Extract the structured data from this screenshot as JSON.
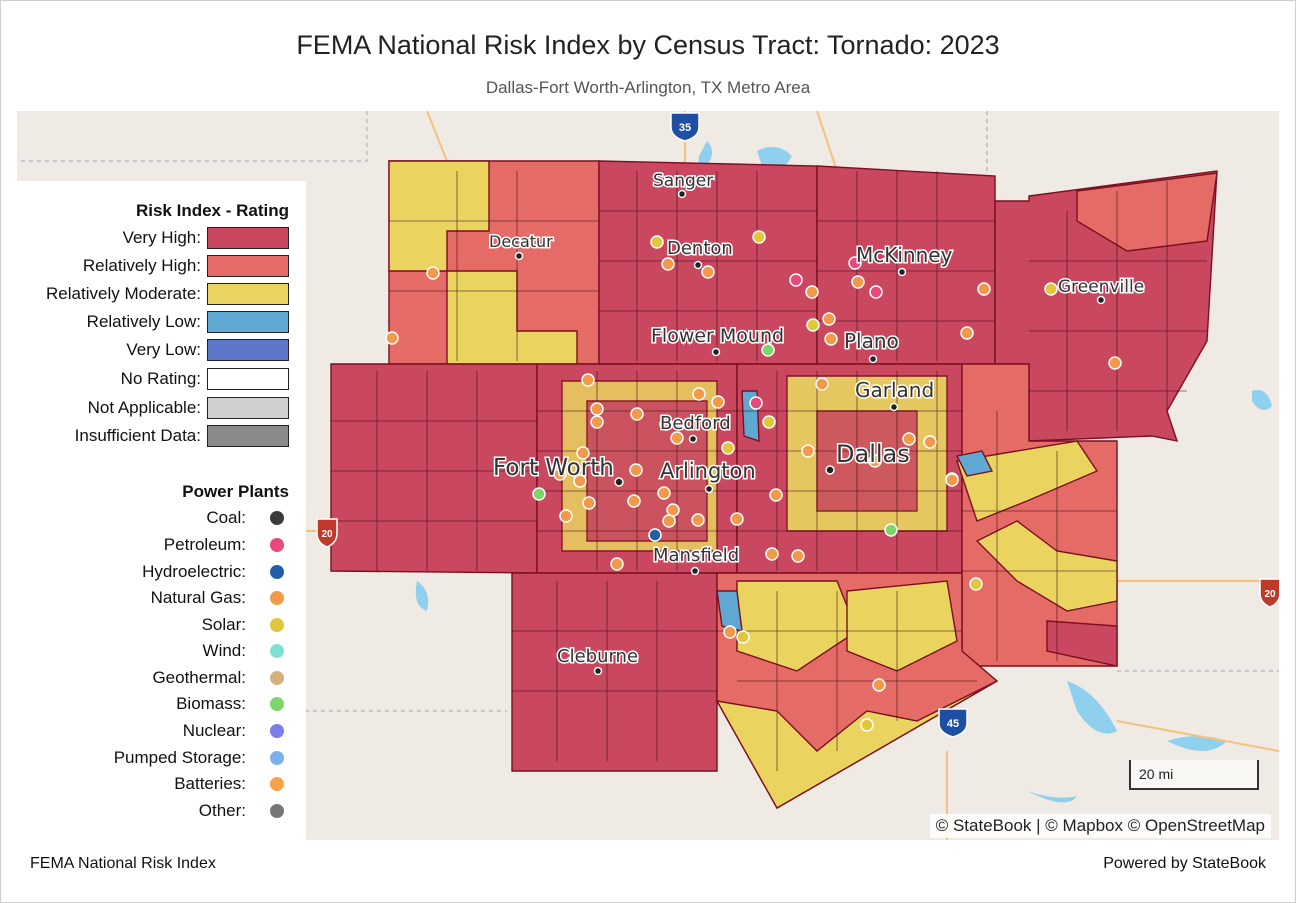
{
  "title": "FEMA National Risk Index by Census Tract: Tornado: 2023",
  "subtitle": "Dallas-Fort Worth-Arlington, TX Metro Area",
  "legend": {
    "risk_heading": "Risk Index - Rating",
    "risk_items": [
      {
        "label": "Very High:",
        "color": "#c9475f"
      },
      {
        "label": "Relatively High:",
        "color": "#e56b66"
      },
      {
        "label": "Relatively Moderate:",
        "color": "#ead45f"
      },
      {
        "label": "Relatively Low:",
        "color": "#5ea8d2"
      },
      {
        "label": "Very Low:",
        "color": "#5e78c9"
      },
      {
        "label": "No Rating:",
        "color": "#ffffff"
      },
      {
        "label": "Not Applicable:",
        "color": "#d0d0d0"
      },
      {
        "label": "Insufficient Data:",
        "color": "#8a8a8a"
      }
    ],
    "plants_heading": "Power Plants",
    "plant_items": [
      {
        "label": "Coal:",
        "color": "#3a3a3a"
      },
      {
        "label": "Petroleum:",
        "color": "#e8487a"
      },
      {
        "label": "Hydroelectric:",
        "color": "#1f5fa8"
      },
      {
        "label": "Natural Gas:",
        "color": "#f2994a"
      },
      {
        "label": "Solar:",
        "color": "#e0c83a"
      },
      {
        "label": "Wind:",
        "color": "#7fe0d6"
      },
      {
        "label": "Geothermal:",
        "color": "#d4b07c"
      },
      {
        "label": "Biomass:",
        "color": "#7cd66a"
      },
      {
        "label": "Nuclear:",
        "color": "#7a7ee8"
      },
      {
        "label": "Pumped Storage:",
        "color": "#7ab0ec"
      },
      {
        "label": "Batteries:",
        "color": "#f5a24a"
      },
      {
        "label": "Other:",
        "color": "#777777"
      }
    ]
  },
  "map": {
    "cities": [
      "Sanger",
      "Decatur",
      "Denton",
      "McKinney",
      "Greenville",
      "Flower Mound",
      "Plano",
      "Garland",
      "Bedford",
      "Fort Worth",
      "Arlington",
      "Dallas",
      "Mansfield",
      "Cleburne"
    ],
    "highway_shields": [
      "35",
      "45",
      "20",
      "20"
    ],
    "scale_label": "20 mi",
    "attribution": "© StateBook | © Mapbox © OpenStreetMap"
  },
  "footer": {
    "left": "FEMA National Risk Index",
    "right": "Powered by StateBook"
  }
}
